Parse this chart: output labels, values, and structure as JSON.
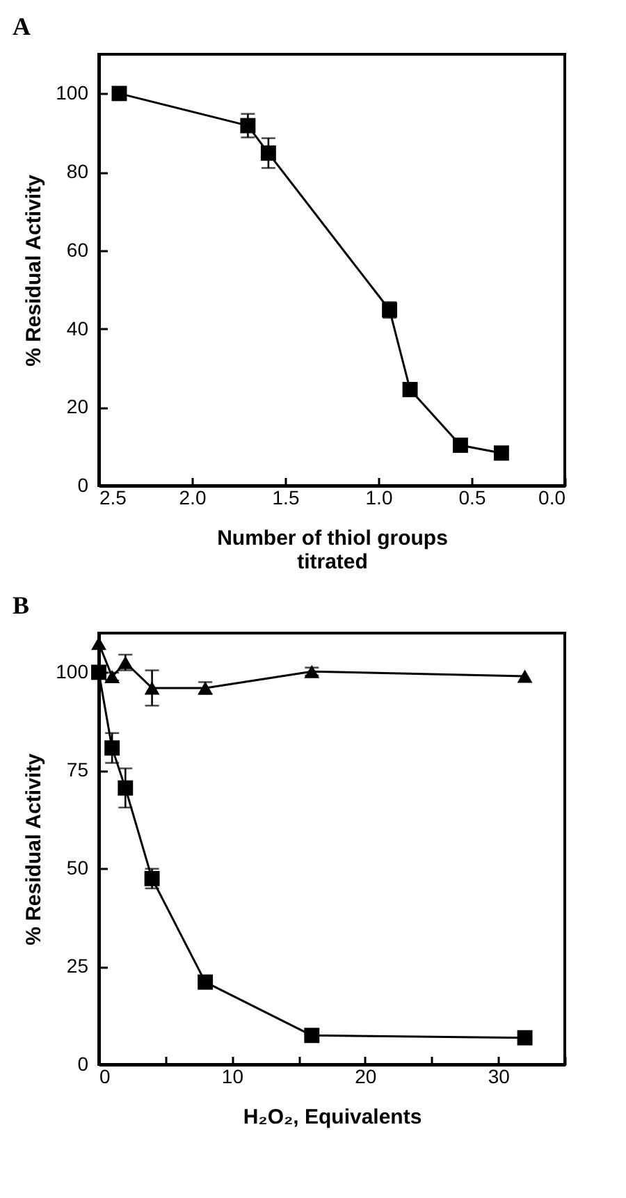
{
  "chart_data": [
    {
      "type": "line",
      "title": "A",
      "xlabel": "Number of thiol groups titrated",
      "ylabel": "% Residual Activity",
      "xlim": [
        2.5,
        0
      ],
      "xticks": [
        2.5,
        {
          "value": 2,
          "label": "2.0"
        },
        1.5,
        {
          "value": 1,
          "label": "1.0"
        },
        0.5,
        {
          "value": 0,
          "label": "0.0"
        }
      ],
      "ylim": [
        0,
        110
      ],
      "yticks": [
        0,
        20,
        40,
        60,
        80,
        100
      ],
      "grid": false,
      "line_style": "solid",
      "series": [
        {
          "color": "#000000",
          "marker": "square",
          "x": [
            2.39,
            1.7,
            1.59,
            0.94,
            0.83,
            0.56,
            0.34
          ],
          "values": [
            100,
            91.8,
            84.8,
            44.8,
            24.5,
            10.3,
            8.3
          ],
          "errors": [
            null,
            3,
            3.8,
            2,
            null,
            null,
            1.5
          ]
        }
      ]
    },
    {
      "type": "line",
      "title": "B",
      "xlabel": "H₂O₂, Equivalents",
      "ylabel": "% Residual Activity",
      "xlim": [
        0,
        35
      ],
      "xticks": [
        0,
        {
          "value": 5,
          "label": null
        },
        10,
        {
          "value": 15,
          "label": null
        },
        20,
        {
          "value": 25,
          "label": null
        },
        30,
        {
          "value": 35,
          "label": null
        }
      ],
      "ylim": [
        0,
        110
      ],
      "yticks": [
        0,
        25,
        50,
        75,
        100
      ],
      "grid": false,
      "line_style": "solid",
      "series": [
        {
          "color": "#000000",
          "marker": "square",
          "x": [
            0,
            1,
            2,
            4,
            8,
            16,
            32
          ],
          "values": [
            100,
            80.7,
            70.5,
            47.4,
            21,
            7.4,
            6.8
          ],
          "errors": [
            null,
            3.8,
            5,
            2.5,
            1.5,
            null,
            1.5
          ]
        },
        {
          "color": "#000000",
          "marker": "triangle",
          "x": [
            0,
            1,
            2,
            4,
            8,
            16,
            32
          ],
          "values": [
            107.4,
            98.9,
            102.5,
            96,
            96,
            100.2,
            99
          ],
          "errors": [
            null,
            1,
            2,
            4.5,
            1.5,
            1,
            null
          ]
        }
      ]
    }
  ]
}
